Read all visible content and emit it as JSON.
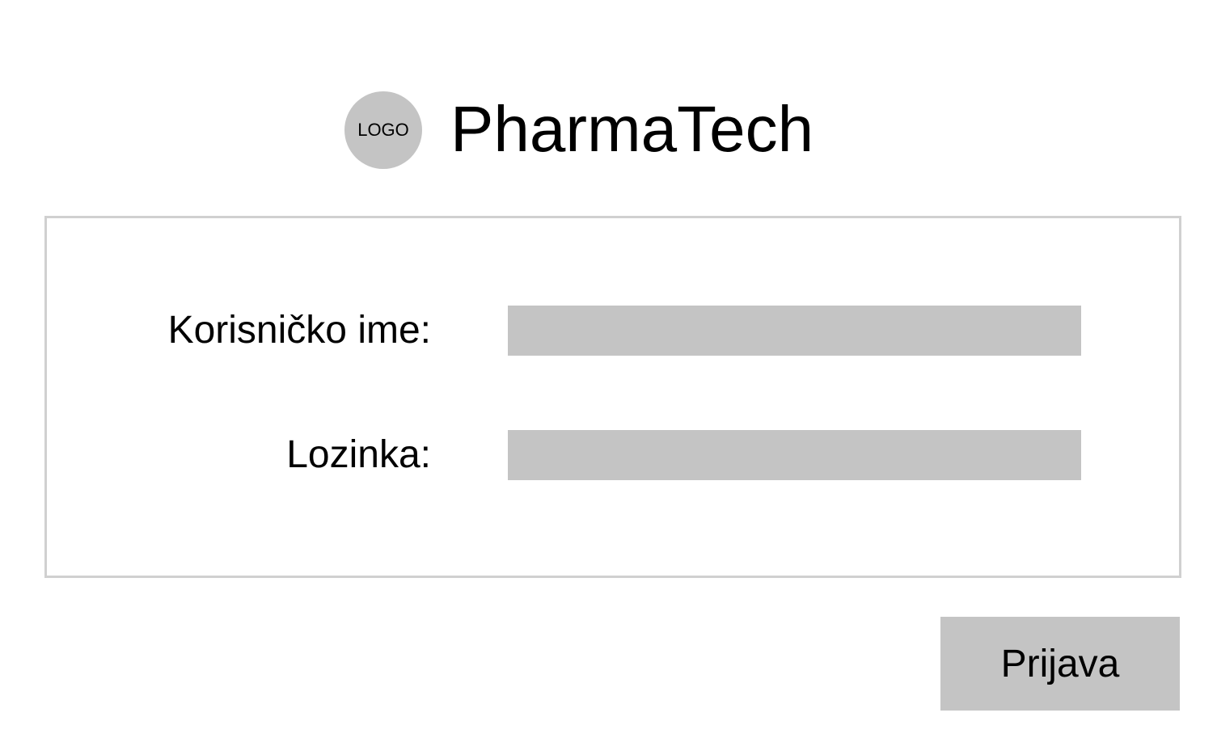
{
  "header": {
    "logo_text": "LOGO",
    "brand_name": "PharmaTech"
  },
  "login_form": {
    "username_label": "Korisničko ime:",
    "username_value": "",
    "password_label": "Lozinka:",
    "password_value": ""
  },
  "actions": {
    "login_label": "Prijava"
  },
  "colors": {
    "input_fill": "#c4c4c4",
    "panel_border": "#d0d0d0",
    "button_fill": "#c4c4c4",
    "logo_fill": "#c4c4c4"
  }
}
